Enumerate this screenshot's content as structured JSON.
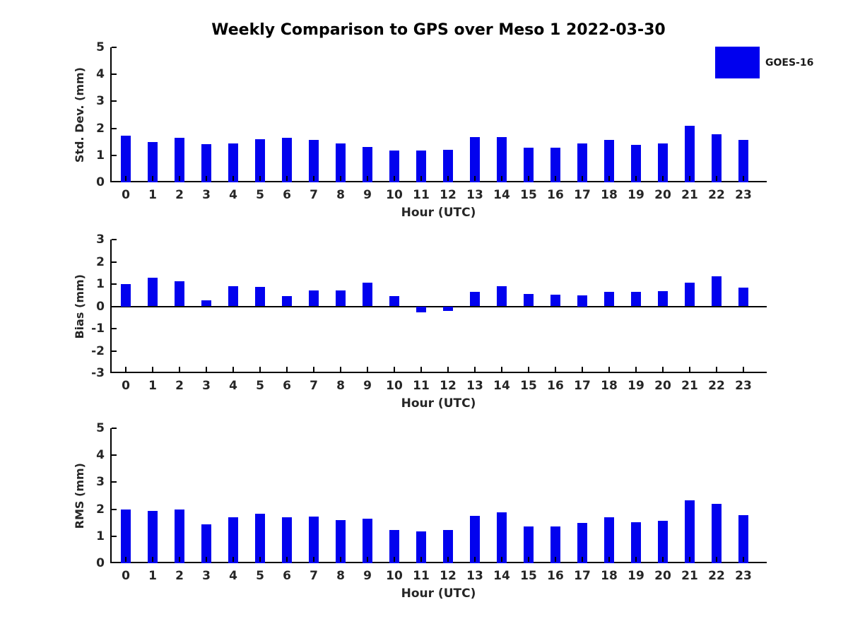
{
  "title": "Weekly Comparison to GPS over Meso 1 2022-03-30",
  "legend": {
    "label": "GOES-16",
    "color": "#0000ee"
  },
  "colors": {
    "bar": "#0202ee",
    "axis": "#000000",
    "tick_text": "#262626",
    "title_text": "#000000"
  },
  "chart_data": [
    {
      "type": "bar",
      "title": "Weekly Comparison to GPS over Meso 1 2022-03-30",
      "ylabel": "Std. Dev. (mm)",
      "xlabel": "Hour (UTC)",
      "legend": [
        "GOES-16"
      ],
      "legend_position": "upper right (outside axes)",
      "grid": false,
      "categories": [
        "0",
        "1",
        "2",
        "3",
        "4",
        "5",
        "6",
        "7",
        "8",
        "9",
        "10",
        "11",
        "12",
        "13",
        "14",
        "15",
        "16",
        "17",
        "18",
        "19",
        "20",
        "21",
        "22",
        "23"
      ],
      "values": [
        1.72,
        1.5,
        1.65,
        1.42,
        1.45,
        1.6,
        1.65,
        1.57,
        1.45,
        1.32,
        1.17,
        1.17,
        1.2,
        1.67,
        1.68,
        1.28,
        1.28,
        1.43,
        1.57,
        1.4,
        1.43,
        2.1,
        1.78,
        1.57
      ],
      "ylim": [
        0,
        5
      ],
      "yticks": [
        0,
        1,
        2,
        3,
        4,
        5
      ]
    },
    {
      "type": "bar",
      "title": "",
      "ylabel": "Bias (mm)",
      "xlabel": "Hour (UTC)",
      "legend": [
        "GOES-16"
      ],
      "grid": false,
      "categories": [
        "0",
        "1",
        "2",
        "3",
        "4",
        "5",
        "6",
        "7",
        "8",
        "9",
        "10",
        "11",
        "12",
        "13",
        "14",
        "15",
        "16",
        "17",
        "18",
        "19",
        "20",
        "21",
        "22",
        "23"
      ],
      "values": [
        1.0,
        1.27,
        1.13,
        0.27,
        0.92,
        0.87,
        0.45,
        0.73,
        0.7,
        1.05,
        0.45,
        -0.27,
        -0.2,
        0.65,
        0.92,
        0.55,
        0.52,
        0.5,
        0.64,
        0.64,
        0.69,
        1.05,
        1.35,
        0.85
      ],
      "ylim": [
        -3,
        3
      ],
      "yticks": [
        -3,
        -2,
        -1,
        0,
        1,
        2,
        3
      ]
    },
    {
      "type": "bar",
      "title": "",
      "ylabel": "RMS (mm)",
      "xlabel": "Hour (UTC)",
      "legend": [
        "GOES-16"
      ],
      "grid": false,
      "categories": [
        "0",
        "1",
        "2",
        "3",
        "4",
        "5",
        "6",
        "7",
        "8",
        "9",
        "10",
        "11",
        "12",
        "13",
        "14",
        "15",
        "16",
        "17",
        "18",
        "19",
        "20",
        "21",
        "22",
        "23"
      ],
      "values": [
        2.0,
        1.95,
        2.0,
        1.43,
        1.71,
        1.83,
        1.71,
        1.74,
        1.6,
        1.65,
        1.24,
        1.18,
        1.24,
        1.76,
        1.89,
        1.37,
        1.36,
        1.5,
        1.69,
        1.52,
        1.58,
        2.33,
        2.21,
        1.78
      ],
      "ylim": [
        0,
        5
      ],
      "yticks": [
        0,
        1,
        2,
        3,
        4,
        5
      ]
    }
  ]
}
